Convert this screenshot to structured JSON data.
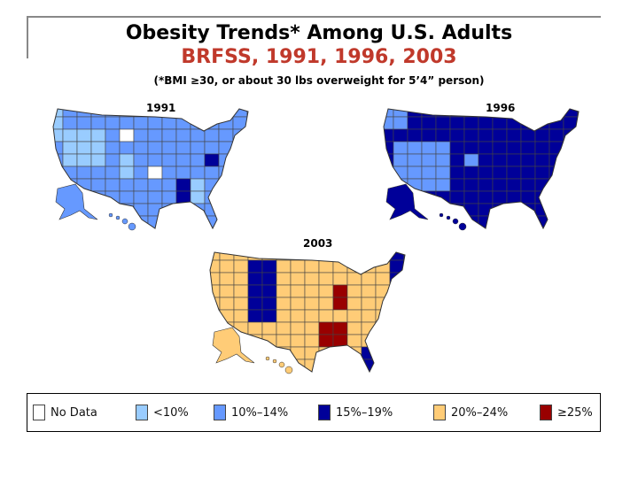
{
  "header": {
    "title": "Obesity Trends* Among U.S. Adults",
    "subtitle": "BRFSS, 1991, 1996, 2003",
    "note": "(*BMI ≥30, or about 30 lbs overweight for 5’4” person)"
  },
  "maps": [
    {
      "year": "1991",
      "dominant": "10%–14%"
    },
    {
      "year": "1996",
      "dominant": "15%–19%"
    },
    {
      "year": "2003",
      "dominant": "20%–24%"
    }
  ],
  "legend": [
    {
      "label": "No Data",
      "color": "#ffffff"
    },
    {
      "label": "<10%",
      "color": "#99ccff"
    },
    {
      "label": "10%–14%",
      "color": "#6699ff"
    },
    {
      "label": "15%–19%",
      "color": "#000099"
    },
    {
      "label": "20%–24%",
      "color": "#ffcc77"
    },
    {
      "label": "≥25%",
      "color": "#990000"
    }
  ]
}
